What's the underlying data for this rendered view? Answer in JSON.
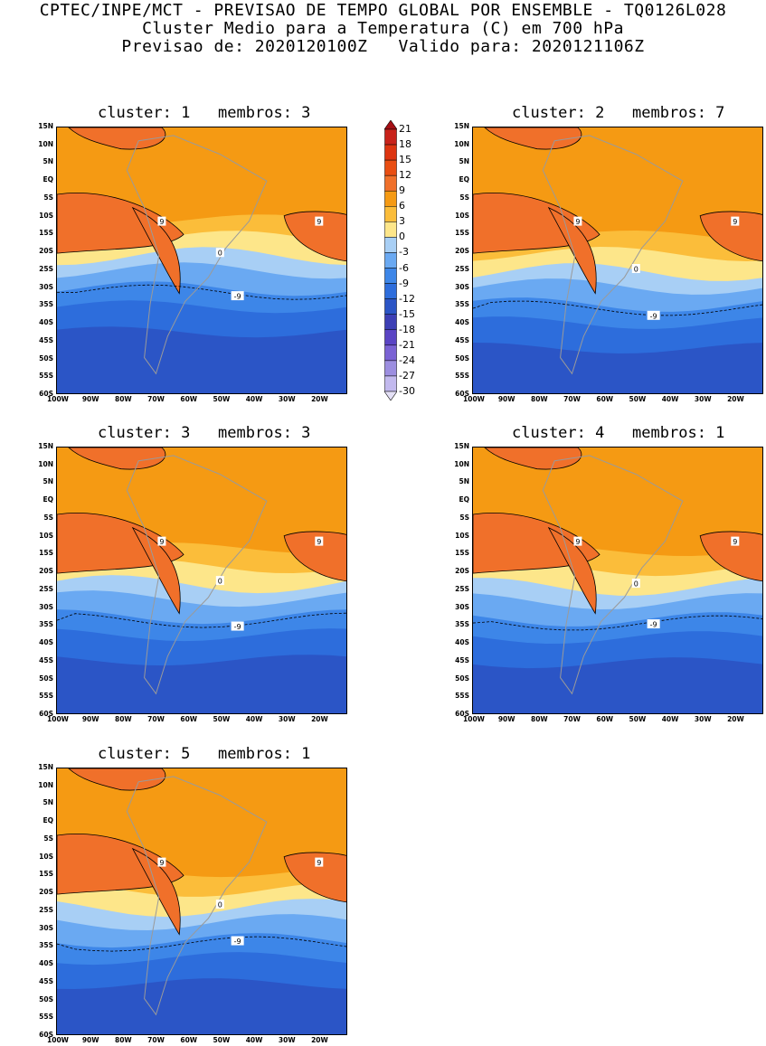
{
  "header": {
    "line1": "CPTEC/INPE/MCT - PREVISAO DE TEMPO GLOBAL POR ENSEMBLE - TQ0126L028",
    "line2": "Cluster Medio para a Temperatura (C) em 700 hPa",
    "line3": "Previsao de: 2020120100Z   Valido para: 2020121106Z"
  },
  "lat_labels": [
    "15N",
    "10N",
    "5N",
    "EQ",
    "5S",
    "10S",
    "15S",
    "20S",
    "25S",
    "30S",
    "35S",
    "40S",
    "45S",
    "50S",
    "55S",
    "60S"
  ],
  "lon_labels": [
    "100W",
    "90W",
    "80W",
    "70W",
    "60W",
    "50W",
    "40W",
    "30W",
    "20W"
  ],
  "colorbar": {
    "levels": [
      "21",
      "18",
      "15",
      "12",
      "9",
      "6",
      "3",
      "0",
      "-3",
      "-6",
      "-9",
      "-12",
      "-15",
      "-18",
      "-21",
      "-24",
      "-27",
      "-30"
    ],
    "colors": [
      "#a50f15",
      "#c8221a",
      "#dd3410",
      "#e94e12",
      "#f0702a",
      "#f59a13",
      "#fbbd3a",
      "#fde68a",
      "#a8cff5",
      "#6aa9f2",
      "#3d86e8",
      "#2d6ddc",
      "#2b55c6",
      "#3d3fb5",
      "#5a44c4",
      "#7a62d4",
      "#9c8ee0",
      "#c2b9ee",
      "#e4e0f6"
    ]
  },
  "panels": [
    {
      "title": "cluster: 1   membros: 3",
      "warm_south": 0.44,
      "labels": {
        "p9": "9",
        "z": "0",
        "m9": "-9"
      }
    },
    {
      "title": "cluster: 2   membros: 7",
      "warm_south": 0.5,
      "labels": {
        "p9": "9",
        "z": "0",
        "m9": "-9"
      }
    },
    {
      "title": "cluster: 3   membros: 3",
      "warm_south": 0.47,
      "labels": {
        "p9": "9",
        "z": "0",
        "m9": "-9"
      }
    },
    {
      "title": "cluster: 4   membros: 1",
      "warm_south": 0.48,
      "labels": {
        "p9": "9",
        "z": "0",
        "m9": "-9"
      }
    },
    {
      "title": "cluster: 5   membros: 1",
      "warm_south": 0.48,
      "labels": {
        "p9": "9",
        "z": "0",
        "m9": "-9"
      }
    }
  ]
}
